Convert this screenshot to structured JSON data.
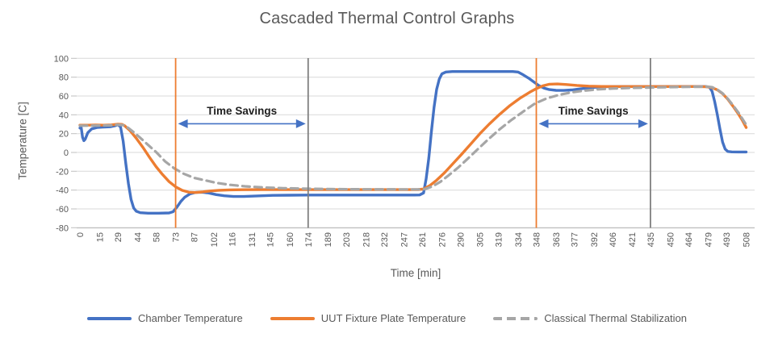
{
  "chart_data": {
    "type": "line",
    "title": "Cascaded Thermal Control Graphs",
    "xlabel": "Time [min]",
    "ylabel": "Temperature [C]",
    "ylim": [
      -80,
      100
    ],
    "ytick_step": 20,
    "xticks": [
      0,
      15,
      29,
      44,
      58,
      73,
      87,
      102,
      116,
      131,
      145,
      160,
      174,
      189,
      203,
      218,
      232,
      247,
      261,
      276,
      290,
      305,
      319,
      334,
      348,
      363,
      377,
      392,
      406,
      421,
      435,
      450,
      464,
      479,
      493,
      508
    ],
    "grid": "horizontal",
    "legend_position": "bottom",
    "series": [
      {
        "name": "Chamber Temperature",
        "color": "#4472C4",
        "style": "solid",
        "width": 3.4,
        "points": [
          [
            0,
            26
          ],
          [
            1,
            26.5
          ],
          [
            2,
            16
          ],
          [
            3,
            12.5
          ],
          [
            4,
            14
          ],
          [
            6,
            21
          ],
          [
            9,
            25
          ],
          [
            13,
            26.5
          ],
          [
            18,
            27
          ],
          [
            23,
            27.3
          ],
          [
            27,
            28.5
          ],
          [
            29,
            29.5
          ],
          [
            31,
            27
          ],
          [
            33,
            12
          ],
          [
            35,
            -12
          ],
          [
            37,
            -33
          ],
          [
            39,
            -50
          ],
          [
            41,
            -59
          ],
          [
            43,
            -62.5
          ],
          [
            46,
            -64
          ],
          [
            52,
            -64.5
          ],
          [
            60,
            -64.5
          ],
          [
            68,
            -64.3
          ],
          [
            71,
            -63
          ],
          [
            74,
            -58
          ],
          [
            77,
            -52
          ],
          [
            80,
            -47.5
          ],
          [
            84,
            -44
          ],
          [
            88,
            -42.5
          ],
          [
            93,
            -42.3
          ],
          [
            98,
            -43
          ],
          [
            104,
            -44.8
          ],
          [
            110,
            -46
          ],
          [
            117,
            -46.8
          ],
          [
            125,
            -46.8
          ],
          [
            135,
            -46.2
          ],
          [
            147,
            -45.6
          ],
          [
            160,
            -45.4
          ],
          [
            175,
            -45.3
          ],
          [
            195,
            -45.3
          ],
          [
            215,
            -45.3
          ],
          [
            235,
            -45.3
          ],
          [
            255,
            -45.3
          ],
          [
            259,
            -45.2
          ],
          [
            262,
            -43
          ],
          [
            264,
            -28
          ],
          [
            266,
            -6
          ],
          [
            268,
            22
          ],
          [
            270,
            48
          ],
          [
            272,
            67
          ],
          [
            274,
            78
          ],
          [
            276,
            83.5
          ],
          [
            279,
            85.5
          ],
          [
            284,
            86
          ],
          [
            295,
            86
          ],
          [
            310,
            86
          ],
          [
            322,
            86
          ],
          [
            330,
            86
          ],
          [
            334,
            85.5
          ],
          [
            338,
            82.5
          ],
          [
            342,
            79
          ],
          [
            346,
            75
          ],
          [
            350,
            71
          ],
          [
            354,
            68.3
          ],
          [
            358,
            66.8
          ],
          [
            363,
            66
          ],
          [
            369,
            65.9
          ],
          [
            375,
            66.4
          ],
          [
            382,
            67.6
          ],
          [
            390,
            68.9
          ],
          [
            398,
            69.7
          ],
          [
            406,
            70
          ],
          [
            420,
            70
          ],
          [
            440,
            70
          ],
          [
            460,
            70
          ],
          [
            477,
            70
          ],
          [
            480,
            69.3
          ],
          [
            482,
            65
          ],
          [
            484,
            54
          ],
          [
            486,
            40
          ],
          [
            488,
            25
          ],
          [
            490,
            11
          ],
          [
            492,
            3.5
          ],
          [
            494,
            1
          ],
          [
            497,
            0.6
          ],
          [
            502,
            0.5
          ],
          [
            508,
            0.5
          ]
        ]
      },
      {
        "name": "UUT Fixture Plate Temperature",
        "color": "#ED7D31",
        "style": "solid",
        "width": 3.4,
        "points": [
          [
            0,
            29
          ],
          [
            6,
            29
          ],
          [
            12,
            29.2
          ],
          [
            18,
            29
          ],
          [
            24,
            29.3
          ],
          [
            29,
            30
          ],
          [
            32,
            29.8
          ],
          [
            34,
            28.5
          ],
          [
            38,
            23.5
          ],
          [
            43,
            15
          ],
          [
            48,
            5.5
          ],
          [
            53,
            -5
          ],
          [
            58,
            -15
          ],
          [
            63,
            -23.5
          ],
          [
            68,
            -31
          ],
          [
            73,
            -36.5
          ],
          [
            78,
            -40.3
          ],
          [
            83,
            -42.3
          ],
          [
            88,
            -42.6
          ],
          [
            93,
            -42
          ],
          [
            99,
            -41
          ],
          [
            106,
            -40.2
          ],
          [
            114,
            -39.8
          ],
          [
            124,
            -39.6
          ],
          [
            140,
            -39.5
          ],
          [
            160,
            -39.5
          ],
          [
            180,
            -39.5
          ],
          [
            205,
            -39.5
          ],
          [
            230,
            -39.5
          ],
          [
            252,
            -39.5
          ],
          [
            258,
            -39.4
          ],
          [
            262,
            -38.8
          ],
          [
            267,
            -35
          ],
          [
            272,
            -29.5
          ],
          [
            278,
            -21.5
          ],
          [
            284,
            -12.5
          ],
          [
            291,
            -2
          ],
          [
            298,
            9
          ],
          [
            305,
            20
          ],
          [
            312,
            30
          ],
          [
            320,
            40.5
          ],
          [
            328,
            50
          ],
          [
            336,
            58
          ],
          [
            343,
            64
          ],
          [
            348,
            67.8
          ],
          [
            353,
            70.8
          ],
          [
            358,
            72.5
          ],
          [
            364,
            72.8
          ],
          [
            371,
            72.2
          ],
          [
            379,
            71.2
          ],
          [
            388,
            70.5
          ],
          [
            398,
            70.1
          ],
          [
            410,
            70
          ],
          [
            430,
            70
          ],
          [
            450,
            70
          ],
          [
            468,
            70
          ],
          [
            478,
            69.8
          ],
          [
            482,
            68.8
          ],
          [
            486,
            66.5
          ],
          [
            490,
            62.5
          ],
          [
            494,
            56.5
          ],
          [
            498,
            49
          ],
          [
            502,
            41
          ],
          [
            505,
            34.5
          ],
          [
            508,
            26.5
          ]
        ]
      },
      {
        "name": "Classical Thermal Stabilization",
        "color": "#A6A6A6",
        "style": "dashed",
        "width": 3.2,
        "points": [
          [
            0,
            28.5
          ],
          [
            8,
            28.5
          ],
          [
            16,
            28.6
          ],
          [
            24,
            28.8
          ],
          [
            29,
            29.5
          ],
          [
            33,
            29
          ],
          [
            37,
            26
          ],
          [
            41,
            21.5
          ],
          [
            46,
            15.5
          ],
          [
            52,
            8
          ],
          [
            58,
            0.5
          ],
          [
            65,
            -9.5
          ],
          [
            72,
            -17
          ],
          [
            79,
            -22.5
          ],
          [
            87,
            -27
          ],
          [
            95,
            -29.5
          ],
          [
            104,
            -32.3
          ],
          [
            114,
            -34.4
          ],
          [
            126,
            -36
          ],
          [
            140,
            -37.2
          ],
          [
            155,
            -38
          ],
          [
            174,
            -38.6
          ],
          [
            195,
            -39
          ],
          [
            220,
            -39.2
          ],
          [
            245,
            -39.3
          ],
          [
            258,
            -39.3
          ],
          [
            263,
            -39
          ],
          [
            269,
            -36
          ],
          [
            275,
            -31
          ],
          [
            281,
            -24.5
          ],
          [
            288,
            -16.5
          ],
          [
            295,
            -7.5
          ],
          [
            303,
            3
          ],
          [
            311,
            13.5
          ],
          [
            320,
            24.5
          ],
          [
            329,
            34.5
          ],
          [
            338,
            43.5
          ],
          [
            347,
            52
          ],
          [
            356,
            57.5
          ],
          [
            365,
            61
          ],
          [
            374,
            63.7
          ],
          [
            384,
            65.6
          ],
          [
            394,
            66.9
          ],
          [
            406,
            67.9
          ],
          [
            420,
            68.6
          ],
          [
            435,
            69
          ],
          [
            450,
            69.4
          ],
          [
            465,
            69.7
          ],
          [
            478,
            69.9
          ],
          [
            482,
            69.3
          ],
          [
            486,
            66.8
          ],
          [
            490,
            62.8
          ],
          [
            494,
            57
          ],
          [
            498,
            50
          ],
          [
            502,
            42.5
          ],
          [
            505,
            36
          ],
          [
            508,
            29.5
          ]
        ]
      }
    ],
    "vertical_lines": [
      {
        "x": 73,
        "color": "#ED7D31",
        "name": "cascaded-marker-1"
      },
      {
        "x": 174,
        "color": "#7F7F7F",
        "name": "classical-marker-1"
      },
      {
        "x": 348,
        "color": "#ED7D31",
        "name": "cascaded-marker-2"
      },
      {
        "x": 435,
        "color": "#7F7F7F",
        "name": "classical-marker-2"
      }
    ],
    "annotations": [
      {
        "label": "Time Savings",
        "from_x": 73,
        "to_x": 174,
        "arrow_temp": 30.5,
        "label_temp": 40.5
      },
      {
        "label": "Time Savings",
        "from_x": 348,
        "to_x": 435,
        "arrow_temp": 30.5,
        "label_temp": 40.5
      }
    ]
  },
  "palette": {
    "text": "#595959",
    "grid": "#D9D9D9",
    "axis": "#BFBFBF",
    "annotation_text": "#1F1F1F",
    "annotation_arrow": "#4472C4",
    "background": "#FFFFFF"
  }
}
